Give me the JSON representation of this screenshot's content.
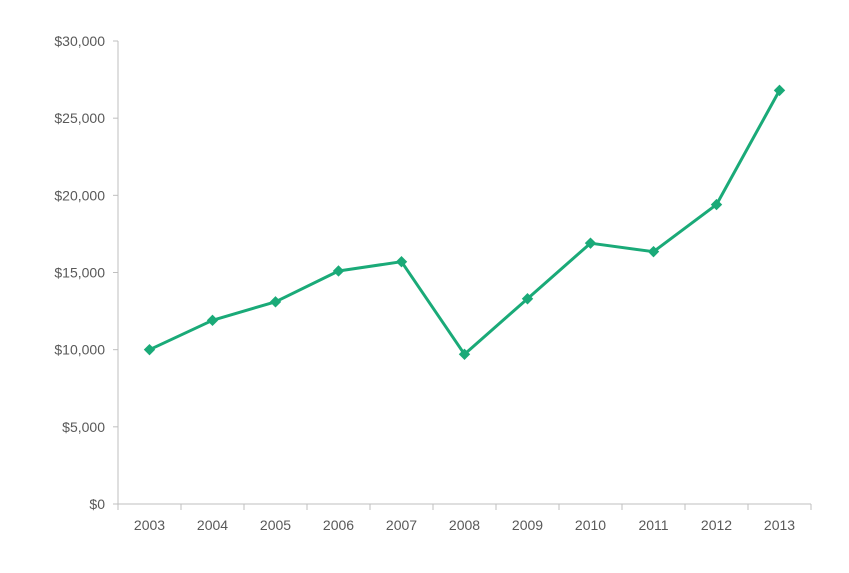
{
  "chart_data": {
    "type": "line",
    "title": "",
    "xlabel": "",
    "ylabel": "",
    "categories": [
      "2003",
      "2004",
      "2005",
      "2006",
      "2007",
      "2008",
      "2009",
      "2010",
      "2011",
      "2012",
      "2013"
    ],
    "series": [
      {
        "values": [
          10000,
          11900,
          13100,
          15100,
          15700,
          9700,
          13300,
          16900,
          16350,
          19400,
          26800
        ],
        "color": "#1aaa78",
        "marker": "diamond"
      }
    ],
    "ylim": [
      0,
      30000
    ],
    "yticks": [
      0,
      5000,
      10000,
      15000,
      20000,
      25000,
      30000
    ],
    "ytick_labels": [
      "$0",
      "$5,000",
      "$10,000",
      "$15,000",
      "$20,000",
      "$25,000",
      "$30,000"
    ],
    "grid": false,
    "legend": "none",
    "axis_color": "#bfbfbf",
    "label_color": "#595959"
  }
}
